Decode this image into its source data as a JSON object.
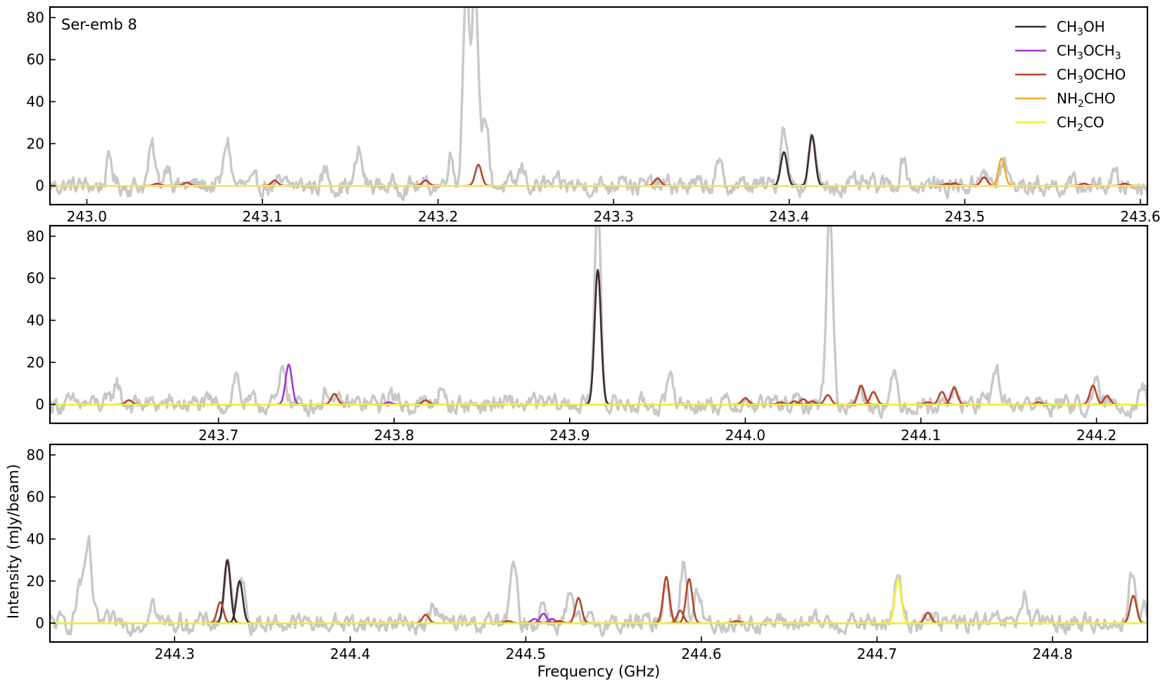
{
  "figure": {
    "panel_label": "Ser-emb 8",
    "xlabel": "Frequency (GHz)",
    "ylabel": "Intensity (mJy/beam)"
  },
  "colors": {
    "observed": "#c8c8c8",
    "CH3OH": "#3b2a2e",
    "CH3OCH3": "#a436d4",
    "CH3OCHO": "#b5442b",
    "NH2CHO": "#f0a830",
    "CH2CO": "#f5f03a"
  },
  "legend": [
    {
      "key": "CH3OH",
      "parts": [
        [
          "CH",
          false
        ],
        [
          "3",
          true
        ],
        [
          "OH",
          false
        ]
      ]
    },
    {
      "key": "CH3OCH3",
      "parts": [
        [
          "CH",
          false
        ],
        [
          "3",
          true
        ],
        [
          "OCH",
          false
        ],
        [
          "3",
          true
        ]
      ]
    },
    {
      "key": "CH3OCHO",
      "parts": [
        [
          "CH",
          false
        ],
        [
          "3",
          true
        ],
        [
          "OCHO",
          false
        ]
      ]
    },
    {
      "key": "NH2CHO",
      "parts": [
        [
          "NH",
          false
        ],
        [
          "2",
          true
        ],
        [
          "CHO",
          false
        ]
      ]
    },
    {
      "key": "CH2CO",
      "parts": [
        [
          "CH",
          false
        ],
        [
          "2",
          true
        ],
        [
          "CO",
          false
        ]
      ]
    }
  ],
  "chart_data": [
    {
      "type": "line",
      "xlim": [
        242.979,
        243.604
      ],
      "ylim": [
        -9,
        85
      ],
      "xticks": [
        "243.0",
        "243.1",
        "243.2",
        "243.3",
        "243.4",
        "243.5",
        "243.6"
      ],
      "yticks": [
        "0",
        "20",
        "40",
        "60",
        "80"
      ],
      "observed_peaks": [
        [
          243.037,
          18
        ],
        [
          243.08,
          22
        ],
        [
          243.046,
          11
        ],
        [
          243.013,
          12
        ],
        [
          243.155,
          16
        ],
        [
          243.207,
          15
        ],
        [
          243.216,
          95
        ],
        [
          243.221,
          95
        ],
        [
          243.227,
          33
        ],
        [
          243.397,
          30
        ],
        [
          243.413,
          23
        ],
        [
          243.51,
          10
        ],
        [
          243.522,
          12
        ],
        [
          243.465,
          14
        ],
        [
          243.305,
          8
        ],
        [
          243.36,
          9
        ],
        [
          243.585,
          5
        ],
        [
          243.136,
          7
        ],
        [
          243.248,
          8
        ]
      ],
      "models": [
        {
          "species": "CH3OH",
          "lines": [
            [
              243.397,
              16
            ],
            [
              243.413,
              24
            ]
          ]
        },
        {
          "species": "CH3OCH3",
          "lines": []
        },
        {
          "species": "CH3OCHO",
          "lines": [
            [
              243.04,
              1
            ],
            [
              243.057,
              1.5
            ],
            [
              243.107,
              2.5
            ],
            [
              243.193,
              2.5
            ],
            [
              243.223,
              10
            ],
            [
              243.325,
              3.5
            ],
            [
              243.49,
              1
            ],
            [
              243.494,
              1.2
            ],
            [
              243.511,
              4
            ],
            [
              243.568,
              1
            ],
            [
              243.591,
              1
            ]
          ]
        },
        {
          "species": "NH2CHO",
          "lines": [
            [
              243.521,
              13
            ]
          ]
        },
        {
          "species": "CH2CO",
          "lines": []
        }
      ]
    },
    {
      "type": "line",
      "xlim": [
        243.604,
        244.229
      ],
      "ylim": [
        -9,
        85
      ],
      "xticks": [
        "243.7",
        "243.8",
        "243.9",
        "244.0",
        "244.1",
        "244.2"
      ],
      "yticks": [
        "0",
        "20",
        "40",
        "60",
        "80"
      ],
      "observed_peaks": [
        [
          243.642,
          11
        ],
        [
          243.71,
          14
        ],
        [
          243.737,
          18
        ],
        [
          243.762,
          7
        ],
        [
          243.798,
          6
        ],
        [
          243.916,
          95
        ],
        [
          244.048,
          95
        ],
        [
          243.958,
          12
        ],
        [
          244.085,
          13
        ],
        [
          244.143,
          18
        ],
        [
          244.2,
          8
        ],
        [
          244.226,
          10
        ],
        [
          243.826,
          6
        ],
        [
          244.066,
          8
        ],
        [
          244.118,
          7
        ]
      ],
      "models": [
        {
          "species": "CH3OH",
          "lines": [
            [
              243.916,
              64
            ]
          ]
        },
        {
          "species": "CH3OCH3",
          "lines": [
            [
              243.74,
              19
            ],
            [
              243.797,
              1
            ]
          ]
        },
        {
          "species": "CH3OCHO",
          "lines": [
            [
              243.649,
              2
            ],
            [
              243.766,
              5
            ],
            [
              243.818,
              2
            ],
            [
              244.0,
              3
            ],
            [
              244.02,
              1
            ],
            [
              244.028,
              1.5
            ],
            [
              244.033,
              2.5
            ],
            [
              244.038,
              1.5
            ],
            [
              244.047,
              4.5
            ],
            [
              244.066,
              9
            ],
            [
              244.073,
              6
            ],
            [
              244.104,
              1
            ],
            [
              244.112,
              6
            ],
            [
              244.119,
              8
            ],
            [
              244.167,
              1
            ],
            [
              244.198,
              9
            ],
            [
              244.206,
              4
            ]
          ]
        },
        {
          "species": "NH2CHO",
          "lines": []
        },
        {
          "species": "CH2CO",
          "lines": []
        }
      ]
    },
    {
      "type": "line",
      "xlim": [
        244.229,
        244.854
      ],
      "ylim": [
        -9,
        85
      ],
      "xticks": [
        "244.3",
        "244.4",
        "244.5",
        "244.6",
        "244.7",
        "244.8"
      ],
      "yticks": [
        "0",
        "20",
        "40",
        "60",
        "80"
      ],
      "observed_peaks": [
        [
          244.251,
          37
        ],
        [
          244.246,
          19
        ],
        [
          244.287,
          12
        ],
        [
          244.33,
          28
        ],
        [
          244.338,
          26
        ],
        [
          244.448,
          8
        ],
        [
          244.493,
          28
        ],
        [
          244.51,
          10
        ],
        [
          244.525,
          12
        ],
        [
          244.58,
          22
        ],
        [
          244.59,
          29
        ],
        [
          244.598,
          15
        ],
        [
          244.712,
          24
        ],
        [
          244.728,
          6
        ],
        [
          244.784,
          14
        ],
        [
          244.845,
          25
        ],
        [
          244.852,
          8
        ]
      ],
      "models": [
        {
          "species": "CH3OH",
          "lines": [
            [
              244.33,
              30
            ],
            [
              244.337,
              20
            ]
          ]
        },
        {
          "species": "CH3OCH3",
          "lines": [
            [
              244.505,
              2
            ],
            [
              244.51,
              4.5
            ],
            [
              244.515,
              2
            ]
          ]
        },
        {
          "species": "CH3OCHO",
          "lines": [
            [
              244.326,
              10
            ],
            [
              244.443,
              4
            ],
            [
              244.49,
              1
            ],
            [
              244.519,
              1
            ],
            [
              244.53,
              12
            ],
            [
              244.58,
              22
            ],
            [
              244.588,
              6
            ],
            [
              244.593,
              21
            ],
            [
              244.62,
              1
            ],
            [
              244.729,
              5
            ],
            [
              244.846,
              13
            ]
          ]
        },
        {
          "species": "NH2CHO",
          "lines": []
        },
        {
          "species": "CH2CO",
          "lines": [
            [
              244.712,
              21
            ]
          ]
        }
      ]
    }
  ]
}
